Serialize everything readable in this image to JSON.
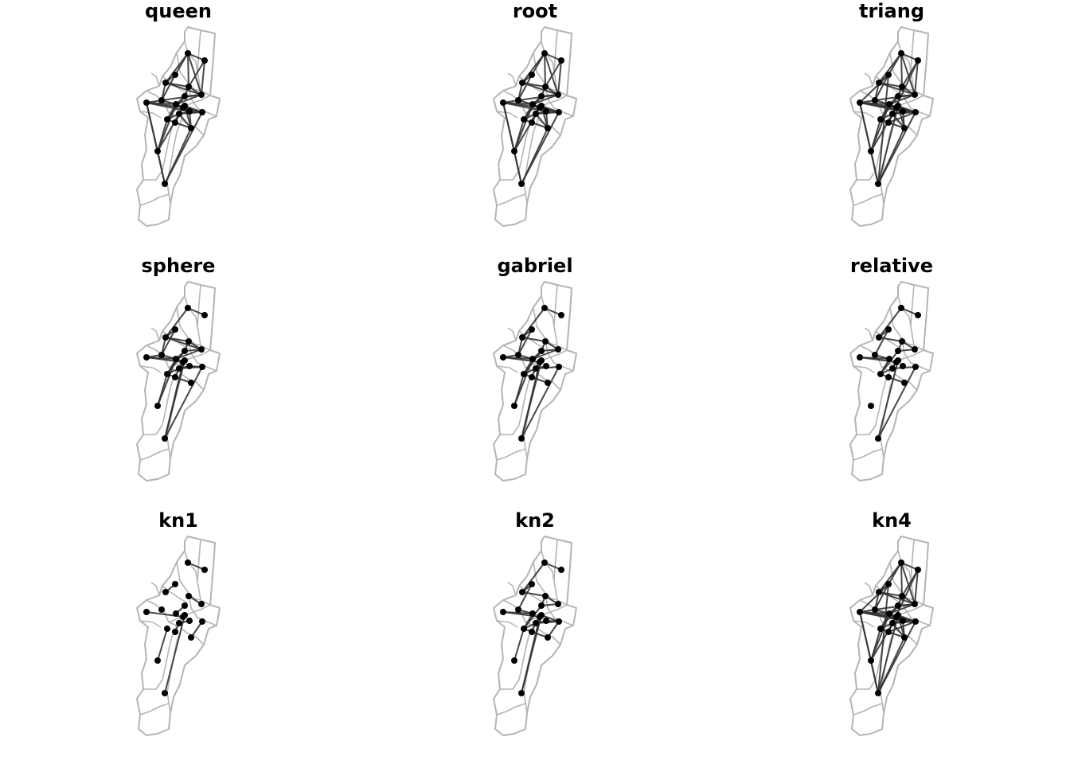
{
  "colors": {
    "outline": "#b4b4b4",
    "edge": "#333333",
    "node": "#000000"
  },
  "panels": [
    {
      "title": "queen",
      "edges": [
        [
          0,
          1
        ],
        [
          0,
          2
        ],
        [
          0,
          3
        ],
        [
          0,
          4
        ],
        [
          0,
          6
        ],
        [
          1,
          4
        ],
        [
          1,
          6
        ],
        [
          2,
          3
        ],
        [
          2,
          5
        ],
        [
          3,
          4
        ],
        [
          3,
          5
        ],
        [
          3,
          6
        ],
        [
          4,
          6
        ],
        [
          4,
          8
        ],
        [
          5,
          6
        ],
        [
          5,
          7
        ],
        [
          5,
          9
        ],
        [
          6,
          8
        ],
        [
          6,
          9
        ],
        [
          7,
          9
        ],
        [
          7,
          10
        ],
        [
          7,
          12
        ],
        [
          7,
          15
        ],
        [
          8,
          9
        ],
        [
          8,
          11
        ],
        [
          9,
          10
        ],
        [
          9,
          11
        ],
        [
          9,
          12
        ],
        [
          10,
          11
        ],
        [
          10,
          12
        ],
        [
          11,
          13
        ],
        [
          11,
          14
        ],
        [
          12,
          13
        ],
        [
          12,
          14
        ],
        [
          12,
          15
        ],
        [
          13,
          14
        ],
        [
          14,
          15
        ],
        [
          14,
          16
        ],
        [
          12,
          16
        ],
        [
          15,
          16
        ],
        [
          15,
          17
        ],
        [
          16,
          18
        ],
        [
          14,
          17
        ],
        [
          10,
          18
        ],
        [
          13,
          17
        ],
        [
          17,
          18
        ],
        [
          7,
          18
        ],
        [
          17,
          19
        ],
        [
          15,
          19
        ],
        [
          16,
          19
        ]
      ]
    },
    {
      "title": "root",
      "edges": [
        [
          0,
          1
        ],
        [
          0,
          2
        ],
        [
          0,
          3
        ],
        [
          0,
          4
        ],
        [
          0,
          6
        ],
        [
          1,
          4
        ],
        [
          1,
          6
        ],
        [
          2,
          3
        ],
        [
          2,
          5
        ],
        [
          3,
          4
        ],
        [
          3,
          5
        ],
        [
          3,
          6
        ],
        [
          4,
          6
        ],
        [
          4,
          8
        ],
        [
          5,
          6
        ],
        [
          5,
          7
        ],
        [
          5,
          9
        ],
        [
          6,
          8
        ],
        [
          6,
          9
        ],
        [
          7,
          9
        ],
        [
          7,
          10
        ],
        [
          7,
          12
        ],
        [
          7,
          15
        ],
        [
          8,
          9
        ],
        [
          8,
          11
        ],
        [
          9,
          10
        ],
        [
          9,
          11
        ],
        [
          9,
          12
        ],
        [
          10,
          11
        ],
        [
          10,
          12
        ],
        [
          11,
          13
        ],
        [
          11,
          14
        ],
        [
          12,
          13
        ],
        [
          12,
          14
        ],
        [
          12,
          15
        ],
        [
          13,
          14
        ],
        [
          14,
          15
        ],
        [
          14,
          16
        ],
        [
          12,
          16
        ],
        [
          15,
          16
        ],
        [
          15,
          17
        ],
        [
          16,
          18
        ],
        [
          14,
          17
        ],
        [
          10,
          18
        ],
        [
          13,
          17
        ],
        [
          17,
          18
        ],
        [
          7,
          18
        ],
        [
          17,
          19
        ],
        [
          15,
          19
        ],
        [
          16,
          19
        ]
      ]
    },
    {
      "title": "triang",
      "edges": [
        [
          0,
          1
        ],
        [
          0,
          2
        ],
        [
          0,
          3
        ],
        [
          0,
          4
        ],
        [
          0,
          6
        ],
        [
          1,
          4
        ],
        [
          1,
          6
        ],
        [
          1,
          13
        ],
        [
          2,
          3
        ],
        [
          2,
          5
        ],
        [
          2,
          7
        ],
        [
          3,
          4
        ],
        [
          3,
          5
        ],
        [
          3,
          6
        ],
        [
          4,
          6
        ],
        [
          4,
          8
        ],
        [
          5,
          6
        ],
        [
          5,
          7
        ],
        [
          5,
          9
        ],
        [
          6,
          8
        ],
        [
          6,
          9
        ],
        [
          7,
          9
        ],
        [
          7,
          10
        ],
        [
          7,
          12
        ],
        [
          7,
          15
        ],
        [
          7,
          18
        ],
        [
          8,
          9
        ],
        [
          8,
          11
        ],
        [
          9,
          10
        ],
        [
          9,
          11
        ],
        [
          9,
          12
        ],
        [
          10,
          11
        ],
        [
          10,
          12
        ],
        [
          11,
          13
        ],
        [
          11,
          14
        ],
        [
          12,
          13
        ],
        [
          12,
          14
        ],
        [
          12,
          15
        ],
        [
          13,
          14
        ],
        [
          14,
          15
        ],
        [
          14,
          16
        ],
        [
          12,
          16
        ],
        [
          15,
          16
        ],
        [
          15,
          17
        ],
        [
          16,
          18
        ],
        [
          14,
          17
        ],
        [
          10,
          18
        ],
        [
          13,
          17
        ],
        [
          17,
          18
        ],
        [
          17,
          19
        ],
        [
          15,
          19
        ],
        [
          16,
          19
        ],
        [
          18,
          19
        ],
        [
          13,
          16
        ],
        [
          7,
          16
        ],
        [
          2,
          18
        ]
      ]
    },
    {
      "title": "sphere",
      "edges": [
        [
          0,
          1
        ],
        [
          0,
          3
        ],
        [
          2,
          3
        ],
        [
          2,
          5
        ],
        [
          3,
          4
        ],
        [
          3,
          5
        ],
        [
          3,
          6
        ],
        [
          4,
          6
        ],
        [
          4,
          8
        ],
        [
          5,
          7
        ],
        [
          5,
          9
        ],
        [
          6,
          8
        ],
        [
          6,
          9
        ],
        [
          7,
          9
        ],
        [
          7,
          12
        ],
        [
          8,
          9
        ],
        [
          8,
          11
        ],
        [
          9,
          10
        ],
        [
          9,
          11
        ],
        [
          9,
          12
        ],
        [
          10,
          11
        ],
        [
          11,
          13
        ],
        [
          11,
          14
        ],
        [
          12,
          14
        ],
        [
          13,
          14
        ],
        [
          14,
          15
        ],
        [
          14,
          16
        ],
        [
          15,
          16
        ],
        [
          16,
          18
        ],
        [
          13,
          17
        ],
        [
          12,
          18
        ],
        [
          18,
          19
        ]
      ]
    },
    {
      "title": "gabriel",
      "edges": [
        [
          0,
          1
        ],
        [
          0,
          3
        ],
        [
          2,
          3
        ],
        [
          2,
          5
        ],
        [
          3,
          4
        ],
        [
          3,
          5
        ],
        [
          4,
          6
        ],
        [
          4,
          8
        ],
        [
          5,
          7
        ],
        [
          5,
          9
        ],
        [
          6,
          8
        ],
        [
          6,
          9
        ],
        [
          7,
          9
        ],
        [
          7,
          12
        ],
        [
          8,
          9
        ],
        [
          8,
          11
        ],
        [
          9,
          10
        ],
        [
          9,
          11
        ],
        [
          10,
          11
        ],
        [
          11,
          13
        ],
        [
          11,
          14
        ],
        [
          12,
          14
        ],
        [
          13,
          14
        ],
        [
          14,
          15
        ],
        [
          14,
          16
        ],
        [
          16,
          18
        ],
        [
          13,
          17
        ],
        [
          12,
          18
        ],
        [
          18,
          19
        ]
      ]
    },
    {
      "title": "relative",
      "edges": [
        [
          0,
          1
        ],
        [
          0,
          3
        ],
        [
          2,
          3
        ],
        [
          2,
          5
        ],
        [
          3,
          4
        ],
        [
          4,
          6
        ],
        [
          4,
          8
        ],
        [
          5,
          9
        ],
        [
          6,
          8
        ],
        [
          7,
          9
        ],
        [
          7,
          12
        ],
        [
          8,
          11
        ],
        [
          9,
          11
        ],
        [
          11,
          13
        ],
        [
          11,
          14
        ],
        [
          12,
          14
        ],
        [
          14,
          16
        ],
        [
          16,
          18
        ],
        [
          13,
          17
        ],
        [
          18,
          19
        ]
      ]
    },
    {
      "title": "kn1",
      "edges": [
        [
          0,
          1
        ],
        [
          2,
          3
        ],
        [
          4,
          6
        ],
        [
          8,
          9
        ],
        [
          7,
          12
        ],
        [
          10,
          11
        ],
        [
          13,
          14
        ],
        [
          14,
          15
        ],
        [
          16,
          17
        ],
        [
          18,
          19
        ]
      ]
    },
    {
      "title": "kn2",
      "edges": [
        [
          0,
          1
        ],
        [
          0,
          3
        ],
        [
          2,
          3
        ],
        [
          2,
          5
        ],
        [
          3,
          4
        ],
        [
          4,
          6
        ],
        [
          4,
          8
        ],
        [
          5,
          9
        ],
        [
          6,
          8
        ],
        [
          7,
          9
        ],
        [
          7,
          12
        ],
        [
          8,
          11
        ],
        [
          9,
          11
        ],
        [
          10,
          11
        ],
        [
          11,
          13
        ],
        [
          11,
          14
        ],
        [
          12,
          14
        ],
        [
          13,
          14
        ],
        [
          14,
          15
        ],
        [
          14,
          16
        ],
        [
          15,
          16
        ],
        [
          16,
          17
        ],
        [
          13,
          17
        ],
        [
          12,
          18
        ],
        [
          18,
          19
        ],
        [
          16,
          19
        ]
      ]
    },
    {
      "title": "kn4",
      "edges": [
        [
          0,
          1
        ],
        [
          0,
          2
        ],
        [
          0,
          3
        ],
        [
          0,
          4
        ],
        [
          0,
          6
        ],
        [
          1,
          4
        ],
        [
          1,
          6
        ],
        [
          1,
          13
        ],
        [
          2,
          3
        ],
        [
          2,
          5
        ],
        [
          2,
          7
        ],
        [
          3,
          4
        ],
        [
          3,
          5
        ],
        [
          3,
          6
        ],
        [
          4,
          6
        ],
        [
          4,
          8
        ],
        [
          5,
          6
        ],
        [
          5,
          7
        ],
        [
          5,
          9
        ],
        [
          6,
          8
        ],
        [
          6,
          9
        ],
        [
          7,
          9
        ],
        [
          7,
          10
        ],
        [
          7,
          12
        ],
        [
          7,
          15
        ],
        [
          7,
          18
        ],
        [
          8,
          9
        ],
        [
          8,
          11
        ],
        [
          9,
          10
        ],
        [
          9,
          11
        ],
        [
          9,
          12
        ],
        [
          10,
          11
        ],
        [
          10,
          12
        ],
        [
          11,
          13
        ],
        [
          11,
          14
        ],
        [
          12,
          13
        ],
        [
          12,
          14
        ],
        [
          12,
          15
        ],
        [
          13,
          14
        ],
        [
          14,
          15
        ],
        [
          14,
          16
        ],
        [
          12,
          16
        ],
        [
          15,
          16
        ],
        [
          15,
          17
        ],
        [
          16,
          18
        ],
        [
          14,
          17
        ],
        [
          10,
          18
        ],
        [
          13,
          17
        ],
        [
          17,
          18
        ],
        [
          17,
          19
        ],
        [
          15,
          19
        ],
        [
          16,
          19
        ],
        [
          18,
          19
        ],
        [
          13,
          16
        ],
        [
          7,
          16
        ],
        [
          2,
          18
        ]
      ]
    }
  ]
}
